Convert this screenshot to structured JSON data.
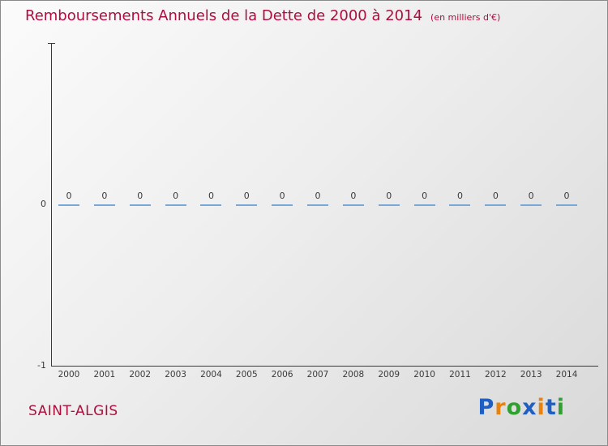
{
  "header": {
    "note": "title text displayed comes from chart_data"
  },
  "footer": {
    "commune": "SAINT-ALGIS",
    "logo_letters": [
      {
        "ch": "P",
        "color": "#1f5fc4"
      },
      {
        "ch": "r",
        "color": "#e8820c"
      },
      {
        "ch": "o",
        "color": "#2fa12f"
      },
      {
        "ch": "x",
        "color": "#1f5fc4"
      },
      {
        "ch": "i",
        "color": "#e8820c"
      },
      {
        "ch": "t",
        "color": "#1f5fc4"
      },
      {
        "ch": "i",
        "color": "#2fa12f"
      }
    ]
  },
  "colors": {
    "title": "#ae0e3e",
    "bar": "#78a8d8",
    "axis": "#3a3a3a",
    "tick_text": "#3a3a3a"
  },
  "chart_data": {
    "type": "bar",
    "title": "Remboursements Annuels de la Dette de 2000 à 2014",
    "units_label": "(en milliers d'€)",
    "categories": [
      "2000",
      "2001",
      "2002",
      "2003",
      "2004",
      "2005",
      "2006",
      "2007",
      "2008",
      "2009",
      "2010",
      "2011",
      "2012",
      "2013",
      "2014"
    ],
    "values": [
      0,
      0,
      0,
      0,
      0,
      0,
      0,
      0,
      0,
      0,
      0,
      0,
      0,
      0,
      0
    ],
    "xlabel": "",
    "ylabel": "",
    "ylim": [
      -1,
      1
    ],
    "ytick_labels": [
      "0",
      "-1"
    ],
    "grid": false,
    "legend": false,
    "bar_color": "#78a8d8"
  }
}
